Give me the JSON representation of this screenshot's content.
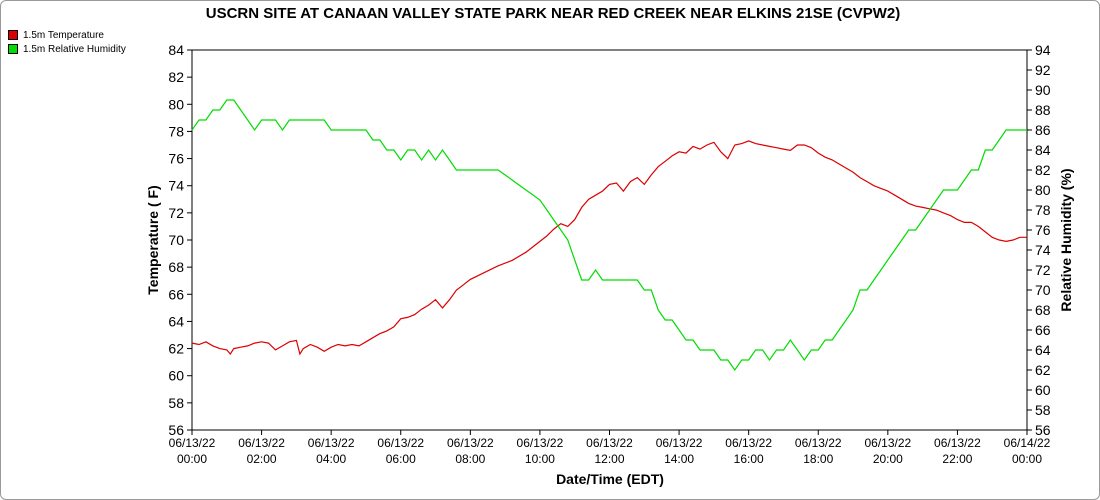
{
  "chart_data": {
    "type": "line",
    "title": "USCRN SITE AT CANAAN VALLEY STATE PARK NEAR RED CREEK NEAR ELKINS 21SE (CVPW2)",
    "xlabel": "Date/Time (EDT)",
    "ylabel_left": "Temperature ( F)",
    "ylabel_right": "Relative Humidity (%)",
    "ylim_left": [
      56,
      84
    ],
    "ylim_right": [
      56,
      94
    ],
    "yticks_left": [
      56,
      58,
      60,
      62,
      64,
      66,
      68,
      70,
      72,
      74,
      76,
      78,
      80,
      82,
      84
    ],
    "yticks_right": [
      56,
      58,
      60,
      62,
      64,
      66,
      68,
      70,
      72,
      74,
      76,
      78,
      80,
      82,
      84,
      86,
      88,
      90,
      92,
      94
    ],
    "xlim_hours": [
      0,
      24
    ],
    "xticks": [
      {
        "h": 0,
        "date": "06/13/22",
        "time": "00:00"
      },
      {
        "h": 2,
        "date": "06/13/22",
        "time": "02:00"
      },
      {
        "h": 4,
        "date": "06/13/22",
        "time": "04:00"
      },
      {
        "h": 6,
        "date": "06/13/22",
        "time": "06:00"
      },
      {
        "h": 8,
        "date": "06/13/22",
        "time": "08:00"
      },
      {
        "h": 10,
        "date": "06/13/22",
        "time": "10:00"
      },
      {
        "h": 12,
        "date": "06/13/22",
        "time": "12:00"
      },
      {
        "h": 14,
        "date": "06/13/22",
        "time": "14:00"
      },
      {
        "h": 16,
        "date": "06/13/22",
        "time": "16:00"
      },
      {
        "h": 18,
        "date": "06/13/22",
        "time": "18:00"
      },
      {
        "h": 20,
        "date": "06/13/22",
        "time": "20:00"
      },
      {
        "h": 22,
        "date": "06/13/22",
        "time": "22:00"
      },
      {
        "h": 24,
        "date": "06/14/22",
        "time": "00:00"
      }
    ],
    "grid": false,
    "legend_position": "top-left",
    "series": [
      {
        "name": "1.5m Temperature",
        "axis": "left",
        "color": "#dd0000",
        "x": [
          0,
          0.2,
          0.4,
          0.6,
          0.8,
          1.0,
          1.1,
          1.2,
          1.4,
          1.6,
          1.8,
          2.0,
          2.2,
          2.4,
          2.6,
          2.8,
          3.0,
          3.1,
          3.2,
          3.4,
          3.6,
          3.8,
          4.0,
          4.2,
          4.4,
          4.6,
          4.8,
          5.0,
          5.2,
          5.4,
          5.6,
          5.8,
          6.0,
          6.2,
          6.4,
          6.6,
          6.8,
          7.0,
          7.2,
          7.4,
          7.6,
          7.8,
          8.0,
          8.4,
          8.8,
          9.2,
          9.6,
          10.0,
          10.2,
          10.4,
          10.6,
          10.8,
          11.0,
          11.2,
          11.4,
          11.6,
          11.8,
          12.0,
          12.2,
          12.4,
          12.6,
          12.8,
          13.0,
          13.2,
          13.4,
          13.6,
          13.8,
          14.0,
          14.2,
          14.4,
          14.6,
          14.8,
          15.0,
          15.2,
          15.4,
          15.6,
          15.8,
          16.0,
          16.2,
          16.4,
          16.6,
          16.8,
          17.0,
          17.2,
          17.4,
          17.6,
          17.8,
          18.0,
          18.2,
          18.4,
          18.6,
          18.8,
          19.0,
          19.2,
          19.4,
          19.6,
          19.8,
          20.0,
          20.2,
          20.4,
          20.6,
          20.8,
          21.0,
          21.2,
          21.4,
          21.6,
          21.8,
          22.0,
          22.2,
          22.4,
          22.6,
          22.8,
          23.0,
          23.2,
          23.4,
          23.6,
          23.8,
          24.0
        ],
        "values": [
          62.4,
          62.3,
          62.5,
          62.2,
          62.0,
          61.9,
          61.6,
          62.0,
          62.1,
          62.2,
          62.4,
          62.5,
          62.4,
          61.9,
          62.2,
          62.5,
          62.6,
          61.6,
          62.0,
          62.3,
          62.1,
          61.8,
          62.1,
          62.3,
          62.2,
          62.3,
          62.2,
          62.5,
          62.8,
          63.1,
          63.3,
          63.6,
          64.2,
          64.3,
          64.5,
          64.9,
          65.2,
          65.6,
          65.0,
          65.6,
          66.3,
          66.7,
          67.1,
          67.6,
          68.1,
          68.5,
          69.1,
          69.9,
          70.3,
          70.8,
          71.2,
          71.0,
          71.5,
          72.4,
          73.0,
          73.3,
          73.6,
          74.1,
          74.2,
          73.6,
          74.3,
          74.6,
          74.1,
          74.8,
          75.4,
          75.8,
          76.2,
          76.5,
          76.4,
          76.9,
          76.7,
          77.0,
          77.2,
          76.5,
          76.0,
          77.0,
          77.1,
          77.3,
          77.1,
          77.0,
          76.9,
          76.8,
          76.7,
          76.6,
          77.0,
          77.0,
          76.8,
          76.4,
          76.1,
          75.9,
          75.6,
          75.3,
          75.0,
          74.6,
          74.3,
          74.0,
          73.8,
          73.6,
          73.3,
          73.0,
          72.7,
          72.5,
          72.4,
          72.3,
          72.2,
          72.0,
          71.8,
          71.5,
          71.3,
          71.3,
          71.0,
          70.6,
          70.2,
          70.0,
          69.9,
          70.0,
          70.2,
          70.2
        ]
      },
      {
        "name": "1.5m Relative Humidity",
        "axis": "right",
        "color": "#00dd00",
        "x": [
          0,
          0.2,
          0.4,
          0.6,
          0.8,
          1.0,
          1.2,
          1.4,
          1.6,
          1.8,
          2.0,
          2.2,
          2.4,
          2.6,
          2.8,
          3.0,
          3.2,
          3.4,
          3.6,
          3.8,
          4.0,
          4.2,
          4.4,
          4.6,
          4.8,
          5.0,
          5.2,
          5.4,
          5.6,
          5.8,
          6.0,
          6.2,
          6.4,
          6.6,
          6.8,
          7.0,
          7.2,
          7.4,
          7.6,
          7.8,
          8.0,
          8.4,
          8.8,
          9.2,
          9.6,
          10.0,
          10.2,
          10.4,
          10.6,
          10.8,
          11.0,
          11.2,
          11.4,
          11.6,
          11.8,
          12.0,
          12.2,
          12.4,
          12.6,
          12.8,
          13.0,
          13.2,
          13.4,
          13.6,
          13.8,
          14.0,
          14.2,
          14.4,
          14.6,
          14.8,
          15.0,
          15.2,
          15.4,
          15.6,
          15.8,
          16.0,
          16.2,
          16.4,
          16.6,
          16.8,
          17.0,
          17.2,
          17.4,
          17.6,
          17.8,
          18.0,
          18.2,
          18.4,
          18.6,
          18.8,
          19.0,
          19.2,
          19.4,
          19.6,
          19.8,
          20.0,
          20.2,
          20.4,
          20.6,
          20.8,
          21.0,
          21.2,
          21.4,
          21.6,
          21.8,
          22.0,
          22.2,
          22.4,
          22.6,
          22.8,
          23.0,
          23.2,
          23.4,
          23.6,
          23.8,
          24.0
        ],
        "values": [
          86,
          87,
          87,
          88,
          88,
          89,
          89,
          88,
          87,
          86,
          87,
          87,
          87,
          86,
          87,
          87,
          87,
          87,
          87,
          87,
          86,
          86,
          86,
          86,
          86,
          86,
          85,
          85,
          84,
          84,
          83,
          84,
          84,
          83,
          84,
          83,
          84,
          83,
          82,
          82,
          82,
          82,
          82,
          81,
          80,
          79,
          78,
          77,
          76,
          75,
          73,
          71,
          71,
          72,
          71,
          71,
          71,
          71,
          71,
          71,
          70,
          70,
          68,
          67,
          67,
          66,
          65,
          65,
          64,
          64,
          64,
          63,
          63,
          62,
          63,
          63,
          64,
          64,
          63,
          64,
          64,
          65,
          64,
          63,
          64,
          64,
          65,
          65,
          66,
          67,
          68,
          70,
          70,
          71,
          72,
          73,
          74,
          75,
          76,
          76,
          77,
          78,
          79,
          80,
          80,
          80,
          81,
          82,
          82,
          84,
          84,
          85,
          86,
          86,
          86,
          86
        ]
      }
    ]
  }
}
